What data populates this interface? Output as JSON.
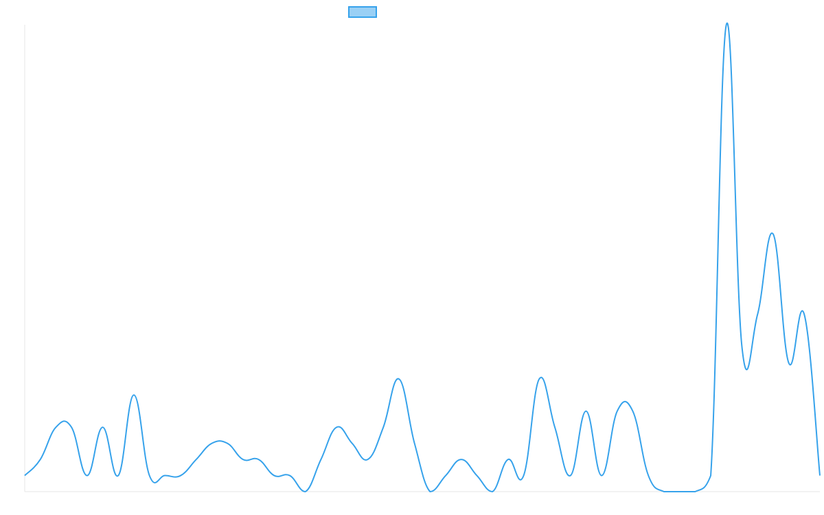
{
  "chart_data": {
    "type": "line",
    "series": [
      {
        "color": "#36a2eb",
        "fill": "#9ad0f5",
        "values": [
          1,
          2,
          4,
          4,
          1,
          4,
          1,
          6,
          1,
          1,
          1,
          2,
          3,
          3,
          2,
          2,
          1,
          1,
          0,
          2,
          4,
          3,
          2,
          4,
          7,
          3,
          0,
          1,
          2,
          1,
          0,
          2,
          1,
          7,
          4,
          1,
          5,
          1,
          5,
          5,
          1,
          0,
          0,
          0,
          1,
          29,
          9,
          11,
          16,
          8,
          11,
          1
        ]
      }
    ],
    "ylim": [
      0,
      29
    ]
  }
}
